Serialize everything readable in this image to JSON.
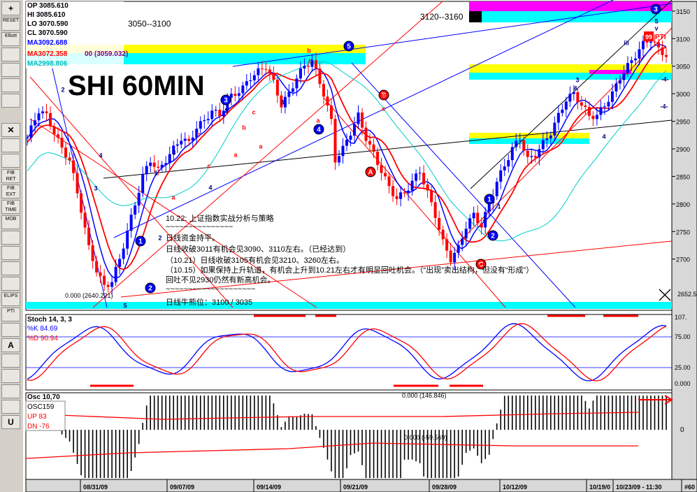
{
  "toolbar": {
    "items": [
      {
        "label": "+",
        "icon": "crosshair-icon"
      },
      {
        "label": "RESET",
        "icon": "reset-icon"
      },
      {
        "label": "Elliott",
        "icon": "elliott-icon"
      },
      {
        "label": "",
        "icon": "bar-icon"
      },
      {
        "label": "",
        "icon": "bar-icon"
      },
      {
        "label": "",
        "icon": "bar-icon"
      },
      {
        "label": "",
        "icon": "bar-icon"
      },
      {
        "label": "✕",
        "icon": "close-icon"
      },
      {
        "label": "",
        "icon": "trendline-icon"
      },
      {
        "label": "",
        "icon": "channel-icon"
      },
      {
        "label": "FIB RET",
        "icon": "fib-retracement-icon"
      },
      {
        "label": "FIB EXT",
        "icon": "fib-extension-icon"
      },
      {
        "label": "FIB TIME",
        "icon": "fib-time-icon"
      },
      {
        "label": "MOB",
        "icon": "mob-icon"
      },
      {
        "label": "",
        "icon": "fan-icon"
      },
      {
        "label": "",
        "icon": "fan-icon"
      },
      {
        "label": "",
        "icon": "grid-icon"
      },
      {
        "label": "",
        "icon": "cycle-icon"
      },
      {
        "label": "ELIPS",
        "icon": "ellipse-icon"
      },
      {
        "label": "PTI",
        "icon": "pti-icon"
      },
      {
        "label": "",
        "icon": "table-icon"
      },
      {
        "label": "A",
        "icon": "text-icon"
      },
      {
        "label": "",
        "icon": "zoom-icon"
      },
      {
        "label": "",
        "icon": "eraser-icon"
      },
      {
        "label": "",
        "icon": "grid-icon"
      },
      {
        "label": "",
        "icon": "printer-icon"
      },
      {
        "label": "U",
        "icon": "magnet-icon"
      }
    ]
  },
  "info": {
    "op": "OP 3085.610",
    "hi": "HI 3085.610",
    "lo": "LO 3070.590",
    "cl": "CL 3070.590",
    "ma1": "MA3092.688",
    "ma2a": "MA3072.358",
    "ma2b": "00 (3059.032)",
    "ma3": "MA2998.806"
  },
  "labels": {
    "title": "SHI 60MIN",
    "zone_left": "3050--3100",
    "zone_right": "3120--3160",
    "low_mark": "0.000 (2640.221)",
    "pti_value": "99",
    "pti_label": "PTI",
    "osc_zero": "0.000 (146.846)",
    "osc_mark": "0.000 (-59.569)",
    "price_current": "2652.5"
  },
  "annotation": {
    "lines": [
      "10.22: 上证指数实战分析与策略",
      "~~~~~~~~~~~~~~~",
      "日线资金持平。",
      "日线收破3011有机会见3090、3110左右。（已经达到）",
      "（10.21）日线收破3105有机会见3210、3260左右。",
      "（10.15）如果保持上升轨道，有机会上升到10.21左右才有明显回吐机会。（“出现”卖出结构，但没有“形成”）",
      "回吐不见2930仍然有新高机会。",
      "~~~~~~~~~~~~~~~~~~~~",
      "日线牛熊位：3100 / 3035"
    ]
  },
  "stoch": {
    "title": "Stoch 14, 3, 3",
    "k": "%K  84.69",
    "d": "%D  90.94",
    "ticks": [
      "107.",
      "75.00",
      "25.00",
      "0.000"
    ]
  },
  "osc": {
    "title": "Osc 10,70",
    "sub": "OSC159",
    "up": "UP   83",
    "dn": "DN   -76",
    "ticks": [
      "0"
    ]
  },
  "wave_labels": [
    {
      "t": "1",
      "c": "blue",
      "circled": true
    },
    {
      "t": "2",
      "c": "blue",
      "circled": true
    },
    {
      "t": "3",
      "c": "blue",
      "circled": true
    },
    {
      "t": "4",
      "c": "blue",
      "circled": true
    },
    {
      "t": "5",
      "c": "blue",
      "circled": true
    },
    {
      "t": "1",
      "c": "blue",
      "circled": true
    },
    {
      "t": "2",
      "c": "blue",
      "circled": true
    },
    {
      "t": "3",
      "c": "blue",
      "circled": true
    },
    {
      "t": "A",
      "c": "red",
      "circled": true
    },
    {
      "t": "B",
      "c": "red",
      "circled": true
    },
    {
      "t": "C",
      "c": "red",
      "circled": true
    },
    {
      "t": "2",
      "c": "navy",
      "circled": false
    },
    {
      "t": "3",
      "c": "navy",
      "circled": false
    },
    {
      "t": "4",
      "c": "navy",
      "circled": false
    },
    {
      "t": "5",
      "c": "navy",
      "circled": false
    },
    {
      "t": "1",
      "c": "navy",
      "circled": false
    },
    {
      "t": "2",
      "c": "navy",
      "circled": false
    },
    {
      "t": "3",
      "c": "navy",
      "circled": false
    },
    {
      "t": "4",
      "c": "navy",
      "circled": false
    },
    {
      "t": "5",
      "c": "navy",
      "circled": false
    },
    {
      "t": "3",
      "c": "navy",
      "circled": false
    },
    {
      "t": "3",
      "c": "navy",
      "circled": false
    },
    {
      "t": "4",
      "c": "navy",
      "circled": false
    },
    {
      "t": "5",
      "c": "navy",
      "circled": false
    },
    {
      "t": "1",
      "c": "navy",
      "circled": false
    },
    {
      "t": "2",
      "c": "navy",
      "circled": false
    },
    {
      "t": "4",
      "c": "navy",
      "circled": false
    },
    {
      "t": "iii",
      "c": "navy",
      "circled": false
    },
    {
      "t": "v",
      "c": "navy",
      "circled": false
    },
    {
      "t": "-4-",
      "c": "navy",
      "circled": false
    },
    {
      "t": "-4-",
      "c": "navy",
      "circled": false
    },
    {
      "t": "a",
      "c": "red",
      "circled": false
    },
    {
      "t": "b",
      "c": "red",
      "circled": false
    },
    {
      "t": "c",
      "c": "red",
      "circled": false
    },
    {
      "t": "a",
      "c": "red",
      "circled": false
    },
    {
      "t": "b",
      "c": "red",
      "circled": false
    },
    {
      "t": "c",
      "c": "red",
      "circled": false
    },
    {
      "t": "a",
      "c": "red",
      "circled": false
    },
    {
      "t": "b",
      "c": "red",
      "circled": false
    },
    {
      "t": "c",
      "c": "red",
      "circled": false
    },
    {
      "t": "a",
      "c": "red",
      "circled": false
    },
    {
      "t": "B",
      "c": "red",
      "circled": false
    },
    {
      "t": "c",
      "c": "red",
      "circled": false
    },
    {
      "t": "C",
      "c": "red",
      "circled": false
    }
  ],
  "chart_data": {
    "type": "candlestick",
    "symbol": "SHI",
    "interval": "60MIN",
    "y_ticks": [
      3150,
      3100,
      3050,
      3000,
      2950,
      2900,
      2850,
      2800,
      2750,
      2700
    ],
    "y_tick_labels": [
      "3150",
      "3100",
      "3050",
      "3000",
      "2950",
      "2900",
      "2850",
      "2800",
      "2750",
      "2700"
    ],
    "ylim": [
      2640,
      3160
    ],
    "x_tick_labels": [
      "08/31/09",
      "09/07/09",
      "09/14/09",
      "09/21/09",
      "09/28/09",
      "10/12/09",
      "10/19/0",
      "10/23/09 - 11:30",
      "#60"
    ],
    "close_path": [
      [
        0,
        2920
      ],
      [
        3,
        2970
      ],
      [
        5,
        2960
      ],
      [
        7,
        2930
      ],
      [
        9,
        2900
      ],
      [
        11,
        2880
      ],
      [
        14,
        2790
      ],
      [
        16,
        2720
      ],
      [
        18,
        2680
      ],
      [
        20,
        2650
      ],
      [
        22,
        2660
      ],
      [
        24,
        2700
      ],
      [
        26,
        2750
      ],
      [
        28,
        2800
      ],
      [
        30,
        2850
      ],
      [
        32,
        2880
      ],
      [
        34,
        2860
      ],
      [
        36,
        2880
      ],
      [
        38,
        2900
      ],
      [
        40,
        2920
      ],
      [
        42,
        2910
      ],
      [
        44,
        2940
      ],
      [
        46,
        2950
      ],
      [
        48,
        2970
      ],
      [
        50,
        2960
      ],
      [
        52,
        2990
      ],
      [
        54,
        3000
      ],
      [
        56,
        3010
      ],
      [
        58,
        3030
      ],
      [
        60,
        3040
      ],
      [
        62,
        3050
      ],
      [
        64,
        3020
      ],
      [
        66,
        2980
      ],
      [
        68,
        3000
      ],
      [
        70,
        3030
      ],
      [
        72,
        3050
      ],
      [
        74,
        3060
      ],
      [
        75,
        3040
      ],
      [
        77,
        3000
      ],
      [
        79,
        2950
      ],
      [
        80,
        2880
      ],
      [
        82,
        2900
      ],
      [
        84,
        2930
      ],
      [
        86,
        2960
      ],
      [
        88,
        2920
      ],
      [
        90,
        2890
      ],
      [
        92,
        2860
      ],
      [
        94,
        2830
      ],
      [
        96,
        2810
      ],
      [
        98,
        2820
      ],
      [
        100,
        2840
      ],
      [
        102,
        2860
      ],
      [
        104,
        2820
      ],
      [
        106,
        2780
      ],
      [
        108,
        2730
      ],
      [
        110,
        2700
      ],
      [
        112,
        2720
      ],
      [
        114,
        2760
      ],
      [
        116,
        2780
      ],
      [
        118,
        2760
      ],
      [
        120,
        2800
      ],
      [
        122,
        2840
      ],
      [
        124,
        2870
      ],
      [
        126,
        2900
      ],
      [
        128,
        2920
      ],
      [
        130,
        2880
      ],
      [
        132,
        2890
      ],
      [
        134,
        2910
      ],
      [
        136,
        2930
      ],
      [
        138,
        2960
      ],
      [
        140,
        2990
      ],
      [
        142,
        3000
      ],
      [
        144,
        2980
      ],
      [
        146,
        2960
      ],
      [
        148,
        2960
      ],
      [
        150,
        2980
      ],
      [
        152,
        3000
      ],
      [
        154,
        3030
      ],
      [
        156,
        3050
      ],
      [
        158,
        3070
      ],
      [
        160,
        3090
      ],
      [
        162,
        3100
      ],
      [
        164,
        3080
      ],
      [
        166,
        3070
      ]
    ],
    "moving_averages": [
      {
        "name": "MA3092.688",
        "color": "#0000ff"
      },
      {
        "name": "MA3072.358",
        "color": "#ff0000"
      },
      {
        "name": "MA2998.806",
        "color": "#00ffff"
      }
    ],
    "stochastic": {
      "k": 84.69,
      "d": 90.94,
      "levels": [
        75,
        25
      ]
    },
    "oscillator": {
      "up": 83,
      "dn": -76
    }
  },
  "colors": {
    "up": "#0000ff",
    "down": "#ff0000",
    "zone_yellow": "#ffff00",
    "zone_cyan": "#00ffff",
    "zone_magenta": "#ff00ff"
  }
}
